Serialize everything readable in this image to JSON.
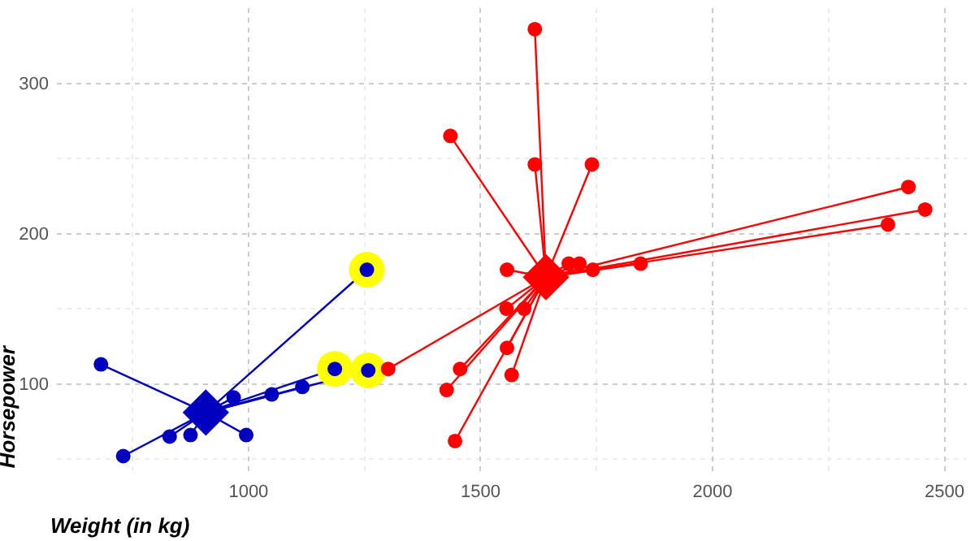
{
  "chart_data": {
    "type": "scatter",
    "xlabel": "Weight (in kg)",
    "ylabel": "Horsepower",
    "xlim": [
      587,
      2548
    ],
    "ylim": [
      42,
      350
    ],
    "xticks": [
      1000,
      1500,
      2000,
      2500
    ],
    "yticks": [
      100,
      200,
      300
    ],
    "grid": true,
    "marker": "circle",
    "series": [
      {
        "type": "line",
        "marker": "none",
        "color": "#0000c0",
        "x": [
          682,
          908
        ],
        "values": [
          113,
          81
        ]
      },
      {
        "type": "line",
        "marker": "none",
        "color": "#0000c0",
        "x": [
          730,
          908
        ],
        "values": [
          52,
          81
        ]
      },
      {
        "type": "line",
        "marker": "none",
        "color": "#0000c0",
        "x": [
          830,
          908
        ],
        "values": [
          65,
          81
        ]
      },
      {
        "type": "line",
        "marker": "none",
        "color": "#0000c0",
        "x": [
          875,
          908
        ],
        "values": [
          66,
          81
        ]
      },
      {
        "type": "line",
        "marker": "none",
        "color": "#0000c0",
        "x": [
          968,
          908
        ],
        "values": [
          91,
          81
        ]
      },
      {
        "type": "line",
        "marker": "none",
        "color": "#0000c0",
        "x": [
          995,
          908
        ],
        "values": [
          66,
          81
        ]
      },
      {
        "type": "line",
        "marker": "none",
        "color": "#0000c0",
        "x": [
          1050,
          908
        ],
        "values": [
          93,
          81
        ]
      },
      {
        "type": "line",
        "marker": "none",
        "color": "#0000c0",
        "x": [
          1116,
          908
        ],
        "values": [
          98,
          81
        ]
      },
      {
        "type": "line",
        "marker": "none",
        "color": "#0000c0",
        "x": [
          1186,
          908
        ],
        "values": [
          110,
          81
        ]
      },
      {
        "type": "line",
        "marker": "none",
        "color": "#0000c0",
        "x": [
          1258,
          908
        ],
        "values": [
          109,
          81
        ]
      },
      {
        "type": "line",
        "marker": "none",
        "color": "#0000c0",
        "x": [
          1255,
          908
        ],
        "values": [
          176,
          81
        ]
      },
      {
        "type": "line",
        "marker": "none",
        "color": "#ff0000",
        "x": [
          1617,
          1641
        ],
        "values": [
          336,
          171
        ]
      },
      {
        "type": "line",
        "marker": "none",
        "color": "#ff0000",
        "x": [
          1435,
          1641
        ],
        "values": [
          265,
          171
        ]
      },
      {
        "type": "line",
        "marker": "none",
        "color": "#ff0000",
        "x": [
          1617,
          1641
        ],
        "values": [
          246,
          171
        ]
      },
      {
        "type": "line",
        "marker": "none",
        "color": "#ff0000",
        "x": [
          1740,
          1641
        ],
        "values": [
          246,
          171
        ]
      },
      {
        "type": "line",
        "marker": "none",
        "color": "#ff0000",
        "x": [
          2422,
          1641
        ],
        "values": [
          231,
          171
        ]
      },
      {
        "type": "line",
        "marker": "none",
        "color": "#ff0000",
        "x": [
          2458,
          1641
        ],
        "values": [
          216,
          171
        ]
      },
      {
        "type": "line",
        "marker": "none",
        "color": "#ff0000",
        "x": [
          2378,
          1641
        ],
        "values": [
          206,
          171
        ]
      },
      {
        "type": "line",
        "marker": "none",
        "color": "#ff0000",
        "x": [
          1845,
          1641
        ],
        "values": [
          180,
          171
        ]
      },
      {
        "type": "line",
        "marker": "none",
        "color": "#ff0000",
        "x": [
          1690,
          1641
        ],
        "values": [
          180,
          171
        ]
      },
      {
        "type": "line",
        "marker": "none",
        "color": "#ff0000",
        "x": [
          1713,
          1641
        ],
        "values": [
          180,
          171
        ]
      },
      {
        "type": "line",
        "marker": "none",
        "color": "#ff0000",
        "x": [
          1557,
          1641
        ],
        "values": [
          176,
          171
        ]
      },
      {
        "type": "line",
        "marker": "none",
        "color": "#ff0000",
        "x": [
          1556,
          1641
        ],
        "values": [
          150,
          171
        ]
      },
      {
        "type": "line",
        "marker": "none",
        "color": "#ff0000",
        "x": [
          1594,
          1641
        ],
        "values": [
          150,
          171
        ]
      },
      {
        "type": "line",
        "marker": "none",
        "color": "#ff0000",
        "x": [
          1557,
          1641
        ],
        "values": [
          124,
          171
        ]
      },
      {
        "type": "line",
        "marker": "none",
        "color": "#ff0000",
        "x": [
          1567,
          1641
        ],
        "values": [
          106,
          171
        ]
      },
      {
        "type": "line",
        "marker": "none",
        "color": "#ff0000",
        "x": [
          1456,
          1641
        ],
        "values": [
          110,
          171
        ]
      },
      {
        "type": "line",
        "marker": "none",
        "color": "#ff0000",
        "x": [
          1427,
          1641
        ],
        "values": [
          96,
          171
        ]
      },
      {
        "type": "line",
        "marker": "none",
        "color": "#ff0000",
        "x": [
          1445,
          1641
        ],
        "values": [
          62,
          171
        ]
      },
      {
        "type": "line",
        "marker": "none",
        "color": "#ff0000",
        "x": [
          1301,
          1641
        ],
        "values": [
          110,
          171
        ]
      },
      {
        "color": "#ffff00",
        "x": [
          1186,
          1258,
          1255
        ],
        "values": [
          110,
          109,
          176
        ]
      },
      {
        "color": "#0000c0",
        "x": [
          682,
          730,
          830,
          875,
          968,
          995,
          1050,
          1116,
          1186,
          1258,
          1255
        ],
        "values": [
          113,
          52,
          65,
          66,
          91,
          66,
          93,
          98,
          110,
          109,
          176
        ]
      },
      {
        "marker": "diamond",
        "color": "#0000c0",
        "x": [
          908
        ],
        "values": [
          81
        ]
      },
      {
        "color": "#ff0000",
        "x": [
          1617,
          1435,
          1617,
          1740,
          2422,
          2458,
          2378,
          1845,
          1742,
          1690,
          1713,
          1557,
          1556,
          1594,
          1557,
          1567,
          1456,
          1427,
          1445,
          1301
        ],
        "values": [
          336,
          265,
          246,
          246,
          231,
          216,
          206,
          180,
          176,
          180,
          180,
          176,
          150,
          150,
          124,
          106,
          110,
          96,
          62,
          110
        ]
      },
      {
        "marker": "diamond",
        "color": "#ff0000",
        "x": [
          1641
        ],
        "values": [
          171
        ]
      }
    ]
  }
}
